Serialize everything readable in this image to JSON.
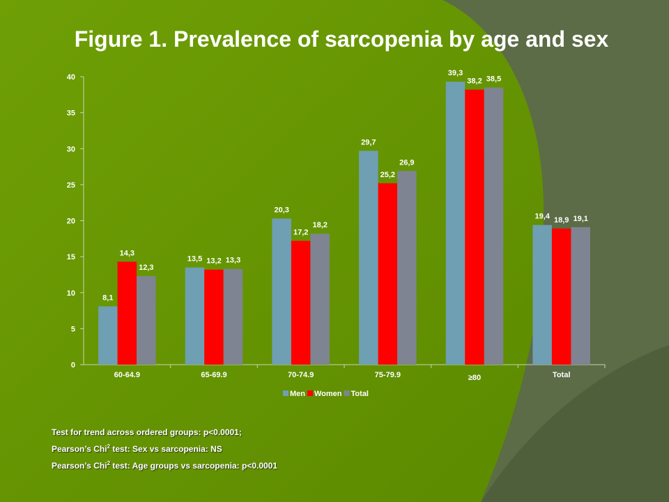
{
  "slide": {
    "title": "Figure 1. Prevalence of sarcopenia by age and sex",
    "notes": [
      {
        "before": "Test for trend across ordered groups: p<0.0001;",
        "sup": "",
        "after": ""
      },
      {
        "before": "Pearson’s Chi",
        "sup": "2",
        "after": " test: Sex vs sarcopenia: NS"
      },
      {
        "before": "Pearson’s Chi",
        "sup": "2",
        "after": " test: Age groups vs sarcopenia: p<0.0001"
      }
    ]
  },
  "colors": {
    "background_bright": "#6a9a00",
    "background_dark": "#5a6b45",
    "men": "#6f9fb3",
    "women": "#ff0000",
    "total": "#7e8491",
    "text": "#ffffff",
    "axis": "#c8d6b0"
  },
  "chart_data": {
    "type": "bar",
    "title": "Figure 1. Prevalence of sarcopenia by age and sex",
    "xlabel": "",
    "ylabel": "",
    "categories": [
      "60-64.9",
      "65-69.9",
      "70-74.9",
      "75-79.9",
      "≥80",
      "Total"
    ],
    "series": [
      {
        "name": "Men",
        "values": [
          8.1,
          13.5,
          20.3,
          29.7,
          39.3,
          19.4
        ],
        "labels": [
          "8,1",
          "13,5",
          "20,3",
          "29,7",
          "39,3",
          "19,4"
        ]
      },
      {
        "name": "Women",
        "values": [
          14.3,
          13.2,
          17.2,
          25.2,
          38.2,
          18.9
        ],
        "labels": [
          "14,3",
          "13,2",
          "17,2",
          "25,2",
          "38,2",
          "18,9"
        ]
      },
      {
        "name": "Total",
        "values": [
          12.3,
          13.3,
          18.2,
          26.9,
          38.5,
          19.1
        ],
        "labels": [
          "12,3",
          "13,3",
          "18,2",
          "26,9",
          "38,5",
          "19,1"
        ]
      }
    ],
    "ylim": [
      0,
      40
    ],
    "yticks": [
      0,
      5,
      10,
      15,
      20,
      25,
      30,
      35,
      40
    ],
    "grid": false,
    "legend_position": "bottom"
  }
}
